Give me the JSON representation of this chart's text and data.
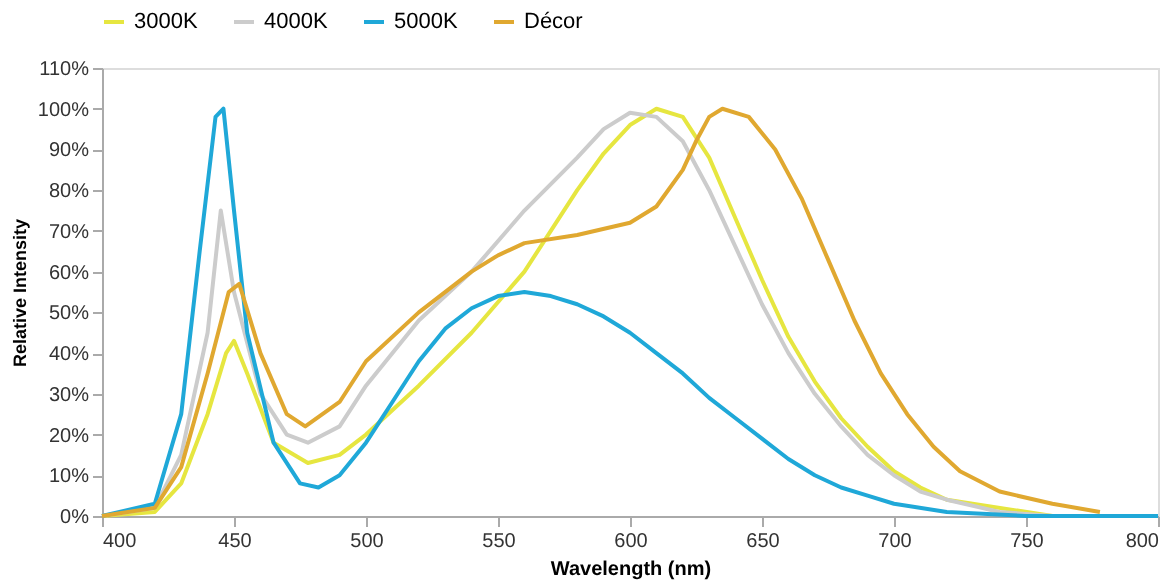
{
  "chart_data": {
    "type": "line",
    "xlabel": "Wavelength (nm)",
    "ylabel": "Relative Intensity",
    "xlim": [
      400,
      800
    ],
    "xticks": [
      400,
      450,
      500,
      550,
      600,
      650,
      700,
      750,
      800
    ],
    "ylim": [
      0,
      110
    ],
    "yticks": [
      {
        "value": 0,
        "label": "0%"
      },
      {
        "value": 10,
        "label": "10%"
      },
      {
        "value": 20,
        "label": "20%"
      },
      {
        "value": 30,
        "label": "30%"
      },
      {
        "value": 40,
        "label": "40%"
      },
      {
        "value": 50,
        "label": "50%"
      },
      {
        "value": 60,
        "label": "60%"
      },
      {
        "value": 70,
        "label": "70%"
      },
      {
        "value": 80,
        "label": "80%"
      },
      {
        "value": 90,
        "label": "90%"
      },
      {
        "value": 100,
        "label": "100%"
      },
      {
        "value": 110,
        "label": "110%"
      }
    ],
    "grid": false,
    "legend": "top",
    "marker": "none",
    "line_style": "solid",
    "series": [
      {
        "name": "3000K",
        "color": "#e6e640",
        "x": [
          400,
          420,
          430,
          440,
          447,
          450,
          455,
          465,
          478,
          490,
          500,
          520,
          540,
          560,
          570,
          580,
          590,
          600,
          610,
          620,
          630,
          640,
          650,
          660,
          670,
          680,
          690,
          700,
          710,
          720,
          760,
          800
        ],
        "values": [
          0,
          1,
          8,
          25,
          40,
          43,
          35,
          18,
          13,
          15,
          20,
          32,
          45,
          60,
          70,
          80,
          89,
          96,
          100,
          98,
          88,
          73,
          58,
          44,
          33,
          24,
          17,
          11,
          7,
          4,
          0,
          0
        ]
      },
      {
        "name": "4000K",
        "color": "#cccccc",
        "x": [
          400,
          420,
          430,
          440,
          445,
          450,
          460,
          470,
          478,
          490,
          500,
          520,
          540,
          560,
          580,
          590,
          600,
          610,
          620,
          630,
          640,
          650,
          660,
          670,
          680,
          690,
          700,
          710,
          720,
          740,
          760,
          800
        ],
        "values": [
          0,
          2,
          15,
          45,
          75,
          55,
          30,
          20,
          18,
          22,
          32,
          48,
          60,
          75,
          88,
          95,
          99,
          98,
          92,
          80,
          66,
          52,
          40,
          30,
          22,
          15,
          10,
          6,
          4,
          1,
          0,
          0
        ]
      },
      {
        "name": "5000K",
        "color": "#1fa8d8",
        "x": [
          400,
          420,
          430,
          437,
          443,
          446,
          450,
          455,
          465,
          475,
          482,
          490,
          500,
          510,
          520,
          530,
          540,
          550,
          560,
          570,
          580,
          590,
          600,
          610,
          620,
          630,
          640,
          650,
          660,
          670,
          680,
          690,
          700,
          720,
          750,
          800
        ],
        "values": [
          0,
          3,
          25,
          65,
          98,
          100,
          75,
          45,
          18,
          8,
          7,
          10,
          18,
          28,
          38,
          46,
          51,
          54,
          55,
          54,
          52,
          49,
          45,
          40,
          35,
          29,
          24,
          19,
          14,
          10,
          7,
          5,
          3,
          1,
          0,
          0
        ]
      },
      {
        "name": "Décor",
        "color": "#e0a830",
        "x": [
          400,
          420,
          430,
          440,
          448,
          452,
          460,
          470,
          477,
          490,
          500,
          520,
          540,
          550,
          560,
          580,
          600,
          610,
          620,
          625,
          630,
          635,
          645,
          655,
          665,
          675,
          685,
          695,
          705,
          715,
          725,
          740,
          760,
          778
        ],
        "values": [
          0,
          2,
          12,
          35,
          55,
          57,
          40,
          25,
          22,
          28,
          38,
          50,
          60,
          64,
          67,
          69,
          72,
          76,
          85,
          92,
          98,
          100,
          98,
          90,
          78,
          63,
          48,
          35,
          25,
          17,
          11,
          6,
          3,
          1
        ]
      }
    ]
  }
}
